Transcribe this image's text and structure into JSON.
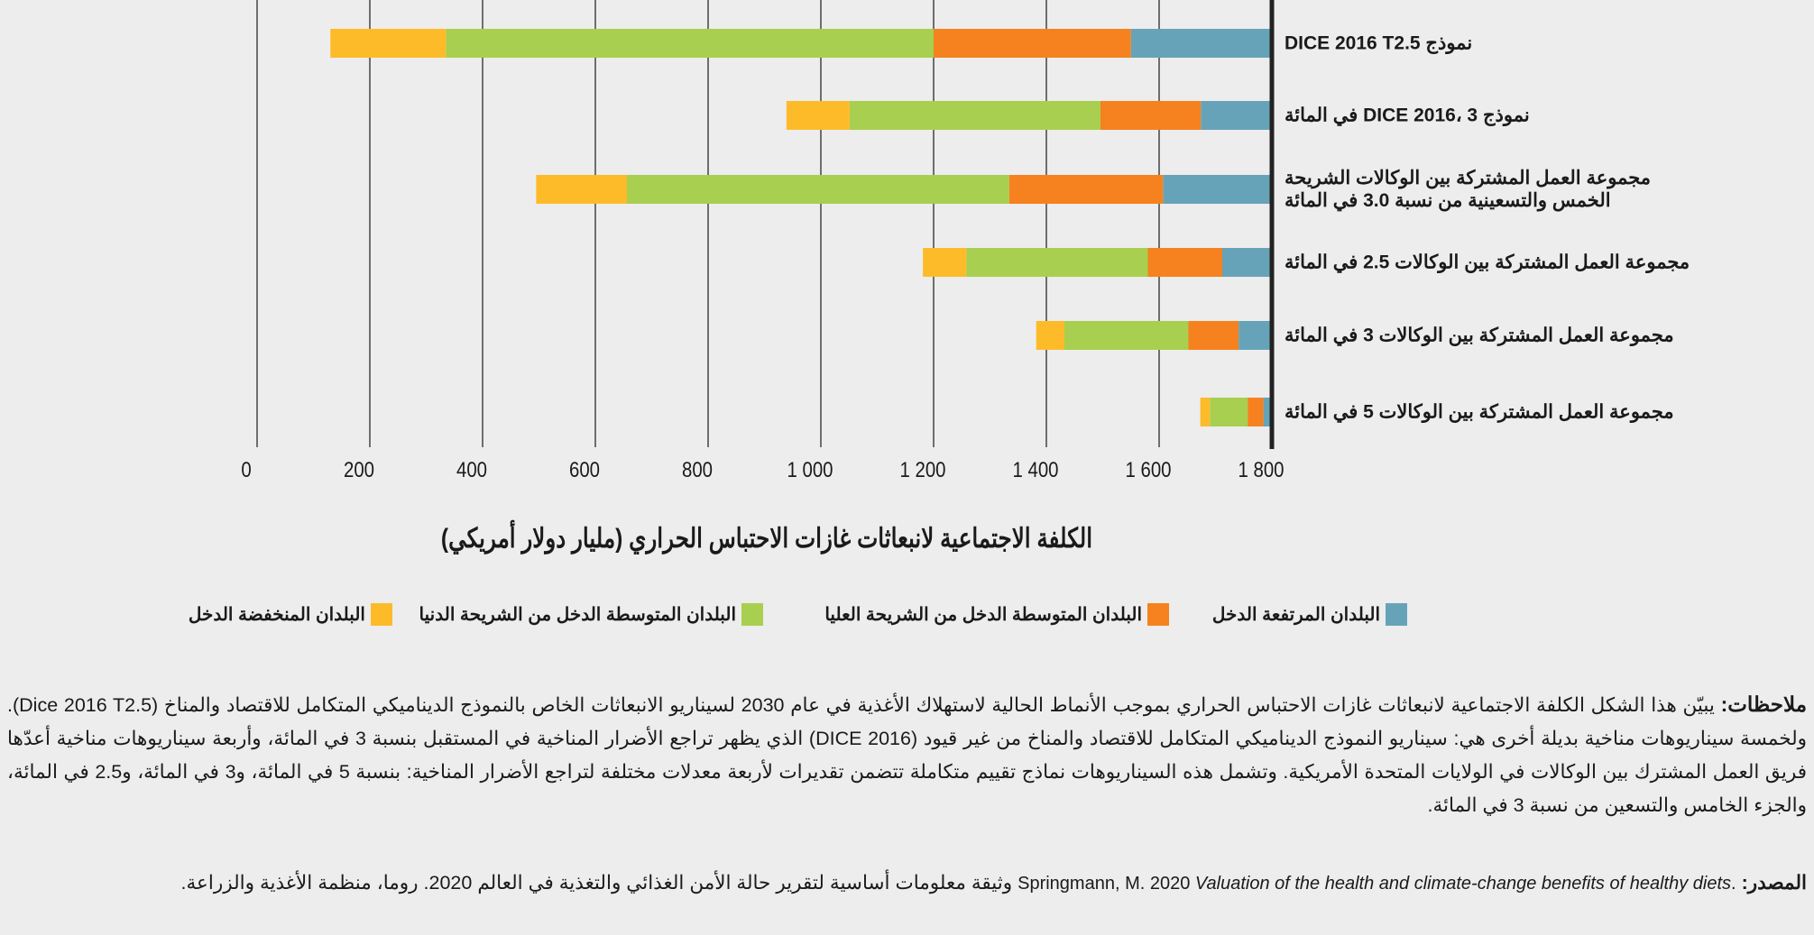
{
  "chart_data": {
    "type": "bar",
    "orientation": "horizontal-stacked",
    "direction": "bars extend leftward from the right-hand axis",
    "xlabel": "الكلفة الاجتماعية لانبعاثات غازات الاحتباس الحراري (مليار دولار أمريكي)",
    "xlim": [
      0,
      1800
    ],
    "tick_labels": [
      "0",
      "200",
      "400",
      "600",
      "800",
      "1 000",
      "1 200",
      "1 400",
      "1 600",
      "1 800"
    ],
    "grid": true,
    "legend_position": "bottom",
    "categories": [
      "نموذج DICE 2016 T2.5",
      "نموذج DICE 2016، 3 في المائة",
      "مجموعة العمل المشتركة بين الوكالات الشريحة الخمس والتسعينية من نسبة 3.0 في المائة",
      "مجموعة العمل المشتركة بين الوكالات 2.5 في المائة",
      "مجموعة العمل المشتركة بين الوكالات 3 في المائة",
      "مجموعة العمل المشتركة بين الوكالات 5 في المائة"
    ],
    "category_lines": [
      [
        "نموذج DICE 2016 T2.5"
      ],
      [
        "نموذج DICE 2016، 3 في المائة"
      ],
      [
        "مجموعة العمل المشتركة بين الوكالات الشريحة",
        "الخمس والتسعينية من نسبة 3.0 في المائة"
      ],
      [
        "مجموعة العمل المشتركة بين الوكالات 2.5 في المائة"
      ],
      [
        "مجموعة العمل المشتركة بين الوكالات 3 في المائة"
      ],
      [
        "مجموعة العمل المشتركة بين الوكالات 5 في المائة"
      ]
    ],
    "series": [
      {
        "name": "البلدان المرتفعة الدخل",
        "color": "#67a3b8",
        "values": [
          250,
          126,
          193,
          88,
          59,
          15
        ]
      },
      {
        "name": "البلدان المتوسطة الدخل من الشريحة العليا",
        "color": "#f5821f",
        "values": [
          350,
          178,
          273,
          132,
          89,
          28
        ]
      },
      {
        "name": "البلدان المتوسطة الدخل من الشريحة الدنيا",
        "color": "#a8cf4f",
        "values": [
          865,
          445,
          678,
          322,
          220,
          67
        ]
      },
      {
        "name": "البلدان المنخفضة الدخل",
        "color": "#fdbb2a",
        "values": [
          205,
          112,
          161,
          77,
          50,
          17
        ]
      }
    ]
  },
  "notes": {
    "label": "ملاحظات:",
    "text": "يبيّن هذا الشكل الكلفة الاجتماعية لانبعاثات غازات الاحتباس الحراري بموجب الأنماط الحالية لاستهلاك الأغذية في عام 2030 لسيناريو الانبعاثات الخاص بالنموذج الديناميكي المتكامل للاقتصاد والمناخ (Dice 2016 T2.5). ولخمسة سيناريوهات مناخية بديلة أخرى هي: سيناريو النموذج الديناميكي المتكامل للاقتصاد والمناخ من غير قيود (DICE 2016) الذي يظهر تراجع الأضرار المناخية في المستقبل بنسبة 3 في المائة، وأربعة سيناريوهات مناخية أعدّها فريق العمل المشترك بين الوكالات في الولايات المتحدة الأمريكية. وتشمل هذه السيناريوهات نماذج تقييم متكاملة تتضمن تقديرات لأربعة معدلات مختلفة لتراجع الأضرار المناخية: بنسبة 5 في المائة، و3 في المائة، و2.5 في المائة، والجزء الخامس والتسعين من نسبة 3 في المائة."
  },
  "source": {
    "label": "المصدر:",
    "author": "Springmann, M. 2020",
    "title": "Valuation of the health and climate-change benefits of healthy diets",
    "rest": "وثيقة معلومات أساسية لتقرير حالة الأمن الغذائي والتغذية في العالم 2020. روما، منظمة الأغذية والزراعة."
  }
}
